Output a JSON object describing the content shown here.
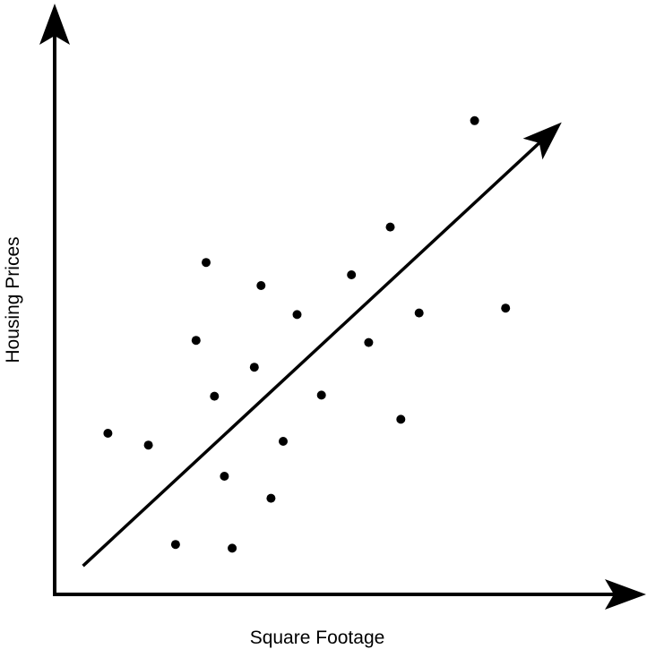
{
  "chart_data": {
    "type": "scatter",
    "title": "",
    "xlabel": "Square Footage",
    "ylabel": "Housing Prices",
    "xlim": [
      0,
      100
    ],
    "ylim": [
      0,
      100
    ],
    "grid": false,
    "axis_ticks": false,
    "series": [
      {
        "points": [
          {
            "x": 9.6,
            "y": 30.0
          },
          {
            "x": 16.9,
            "y": 27.8
          },
          {
            "x": 21.8,
            "y": 9.3
          },
          {
            "x": 25.5,
            "y": 47.3
          },
          {
            "x": 27.3,
            "y": 61.8
          },
          {
            "x": 28.8,
            "y": 36.9
          },
          {
            "x": 30.6,
            "y": 22.0
          },
          {
            "x": 32.0,
            "y": 8.6
          },
          {
            "x": 36.0,
            "y": 42.3
          },
          {
            "x": 37.2,
            "y": 57.5
          },
          {
            "x": 39.0,
            "y": 17.9
          },
          {
            "x": 41.2,
            "y": 28.5
          },
          {
            "x": 43.7,
            "y": 52.1
          },
          {
            "x": 48.1,
            "y": 37.1
          },
          {
            "x": 53.5,
            "y": 59.5
          },
          {
            "x": 56.6,
            "y": 46.9
          },
          {
            "x": 60.5,
            "y": 68.4
          },
          {
            "x": 62.4,
            "y": 32.6
          },
          {
            "x": 65.7,
            "y": 52.4
          },
          {
            "x": 75.7,
            "y": 88.2
          },
          {
            "x": 81.3,
            "y": 53.3
          }
        ]
      }
    ],
    "trend_line": {
      "start": {
        "x": 5.1,
        "y": 5.3
      },
      "end": {
        "x": 91.4,
        "y": 87.9
      }
    }
  }
}
